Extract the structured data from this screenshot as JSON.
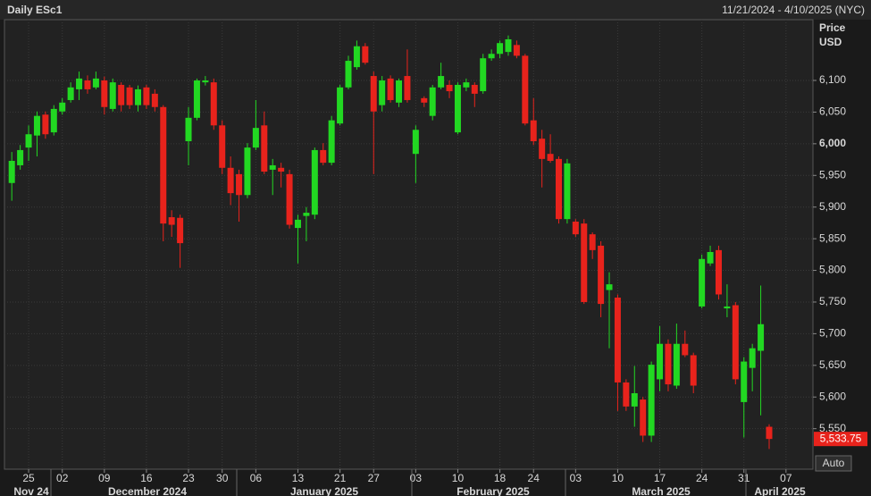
{
  "chart_data": {
    "type": "candlestick",
    "title": "Daily ESc1",
    "date_range": "11/21/2024 - 4/10/2025 (NYC)",
    "y_axis_title": "Price",
    "y_axis_unit": "USD",
    "auto_button": "Auto",
    "months": [
      "Nov 24",
      "December 2024",
      "January 2025",
      "February 2025",
      "March 2025",
      "April 2025"
    ],
    "categories": [
      null,
      null,
      "25",
      null,
      null,
      null,
      "02",
      null,
      null,
      null,
      null,
      "09",
      null,
      null,
      null,
      null,
      "16",
      null,
      null,
      null,
      null,
      "23",
      null,
      null,
      null,
      "30",
      null,
      null,
      null,
      "06",
      null,
      null,
      null,
      null,
      "13",
      null,
      null,
      null,
      null,
      "21",
      null,
      null,
      null,
      "27",
      null,
      null,
      null,
      null,
      "03",
      null,
      null,
      null,
      null,
      "10",
      null,
      null,
      null,
      null,
      "18",
      null,
      null,
      null,
      "24",
      null,
      null,
      null,
      null,
      "03",
      null,
      null,
      null,
      null,
      "10",
      null,
      null,
      null,
      null,
      "17",
      null,
      null,
      null,
      null,
      "24",
      null,
      null,
      null,
      null,
      "31",
      null,
      null,
      null,
      null,
      "07"
    ],
    "open": [
      5938,
      5966,
      5994,
      6013,
      6046,
      6018,
      6051,
      6069,
      6086,
      6100,
      6089,
      6100,
      6055,
      6093,
      6089,
      6061,
      6089,
      6079,
      6058,
      5884,
      5883,
      6004,
      6041,
      6097,
      6097,
      6029,
      5962,
      5952,
      5919,
      5994,
      6029,
      5959,
      5962,
      5952,
      5867,
      5886,
      5888,
      5990,
      5970,
      6032,
      6089,
      6121,
      6154,
      6107,
      6061,
      6103,
      6065,
      6107,
      5984,
      6072,
      6044,
      6089,
      6093,
      6018,
      6089,
      6093,
      6083,
      6135,
      6142,
      6145,
      6156,
      6139,
      6037,
      6008,
      5984,
      5976,
      5881,
      5877,
      5874,
      5857,
      5839,
      5769,
      5757,
      5623,
      5585,
      5596,
      5539,
      5628,
      5684,
      5618,
      5684,
      5666,
      5743,
      5811,
      5832,
      5740,
      5745,
      5592,
      5646,
      5673,
      5553,
      null,
      null
    ],
    "high": [
      5987,
      5998,
      6029,
      6051,
      6051,
      6061,
      6072,
      6097,
      6114,
      6108,
      6114,
      6106,
      6103,
      6097,
      6093,
      6092,
      6093,
      6086,
      6061,
      5895,
      5888,
      6058,
      6103,
      6107,
      6103,
      6037,
      5980,
      5959,
      6001,
      6069,
      6051,
      5976,
      5970,
      5959,
      5888,
      5900,
      5994,
      6001,
      6044,
      6093,
      6139,
      6163,
      6159,
      6114,
      6107,
      6108,
      6103,
      6149,
      6029,
      6075,
      6093,
      6128,
      6100,
      6097,
      6103,
      6097,
      6142,
      6149,
      6163,
      6171,
      6163,
      6142,
      6072,
      6022,
      6015,
      5980,
      5976,
      5881,
      5881,
      5860,
      5846,
      5797,
      5762,
      5628,
      5649,
      5600,
      5656,
      5712,
      5691,
      5716,
      5705,
      5670,
      5825,
      5839,
      5839,
      5778,
      5750,
      5663,
      5684,
      5776,
      5557,
      null,
      null
    ],
    "low": [
      5910,
      5959,
      5973,
      5980,
      6008,
      6013,
      6046,
      6065,
      6069,
      6079,
      6086,
      6046,
      6051,
      6051,
      6055,
      6051,
      6055,
      6051,
      5846,
      5853,
      5804,
      5966,
      6037,
      6092,
      6022,
      5952,
      5903,
      5877,
      5914,
      5990,
      5952,
      5919,
      5931,
      5866,
      5811,
      5846,
      5881,
      5966,
      5966,
      6029,
      6086,
      6117,
      6125,
      5952,
      6051,
      6065,
      6058,
      6065,
      5938,
      6058,
      6037,
      6086,
      6072,
      6015,
      6083,
      6058,
      6079,
      6131,
      6135,
      6139,
      6135,
      6029,
      5998,
      5931,
      5970,
      5874,
      5874,
      5853,
      5747,
      5818,
      5726,
      5677,
      5578,
      5578,
      5553,
      5529,
      5529,
      5609,
      5609,
      5613,
      5663,
      5606,
      5740,
      5807,
      5754,
      5726,
      5620,
      5536,
      5609,
      5571,
      5518,
      null,
      null
    ],
    "close": [
      5973,
      5990,
      6015,
      6044,
      6015,
      6055,
      6065,
      6089,
      6103,
      6086,
      6103,
      6058,
      6097,
      6061,
      6061,
      6086,
      6061,
      6058,
      5874,
      5872,
      5843,
      6041,
      6100,
      6100,
      6029,
      5962,
      5922,
      5919,
      5994,
      6025,
      5956,
      5966,
      5956,
      5872,
      5880,
      5891,
      5990,
      5970,
      6037,
      6089,
      6131,
      6154,
      6128,
      6051,
      6100,
      6069,
      6100,
      6069,
      6022,
      6065,
      6089,
      6107,
      6083,
      6093,
      6097,
      6079,
      6135,
      6142,
      6159,
      6165,
      6139,
      6032,
      6004,
      5976,
      5973,
      5881,
      5969,
      5857,
      5750,
      5832,
      5747,
      5778,
      5623,
      5585,
      5606,
      5539,
      5651,
      5684,
      5620,
      5684,
      5666,
      5618,
      5818,
      5829,
      5762,
      5743,
      5628,
      5656,
      5677,
      5715,
      5533.75,
      null,
      null
    ],
    "value_labels": [
      null,
      null,
      null,
      null,
      null,
      null,
      null,
      null,
      null,
      null,
      null,
      null,
      null,
      null,
      null,
      null,
      null,
      null,
      null,
      null,
      null,
      null,
      null,
      null,
      null,
      null,
      null,
      null,
      null,
      null,
      null,
      null,
      null,
      null,
      null,
      null,
      null,
      null,
      null,
      null,
      null,
      null,
      null,
      null,
      null,
      null,
      null,
      null,
      null,
      null,
      null,
      null,
      null,
      null,
      null,
      null,
      null,
      null,
      null,
      null,
      null,
      null,
      null,
      null,
      null,
      null,
      null,
      null,
      null,
      null,
      null,
      null,
      null,
      null,
      null,
      null,
      null,
      null,
      null,
      null,
      null,
      null,
      null,
      null,
      null,
      null,
      null,
      null,
      null,
      null,
      "5,533.75",
      null,
      null
    ],
    "up_color": "#22d822",
    "down_color": "#e8231c",
    "ylim": [
      5486,
      6196
    ],
    "yticks": [
      {
        "value": 5550,
        "label": "5,550"
      },
      {
        "value": 5600,
        "label": "5,600"
      },
      {
        "value": 5650,
        "label": "5,650"
      },
      {
        "value": 5700,
        "label": "5,700"
      },
      {
        "value": 5750,
        "label": "5,750"
      },
      {
        "value": 5800,
        "label": "5,800"
      },
      {
        "value": 5850,
        "label": "5,850"
      },
      {
        "value": 5900,
        "label": "5,900"
      },
      {
        "value": 5950,
        "label": "5,950"
      },
      {
        "value": 6000,
        "label": "6,000"
      },
      {
        "value": 6050,
        "label": "6,050"
      },
      {
        "value": 6100,
        "label": "6,100"
      }
    ],
    "grid": true
  }
}
